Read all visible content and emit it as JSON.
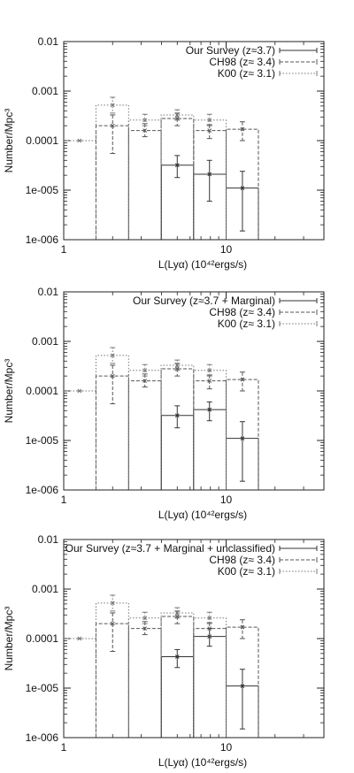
{
  "chart_data": [
    {
      "type": "histogram",
      "ylabel": "Number/Mpc³",
      "xlabel": "L(Lyα) (10⁴²ergs/s)",
      "xlim": [
        1,
        40
      ],
      "ylim": [
        1e-06,
        0.01
      ],
      "xscale": "log",
      "yscale": "log",
      "x_ticks": [
        "1",
        "10"
      ],
      "y_ticks": [
        "0.01",
        "0.001",
        "0.0001",
        "1e-005",
        "1e-006"
      ],
      "legend_position": "top-right",
      "series": [
        {
          "name": "Our Survey (z≈3.7)",
          "style": "solid",
          "bins": [
            {
              "x0": 4.0,
              "x1": 6.3,
              "value": 3.2e-05,
              "center": 5.0,
              "err": [
                1.8e-05,
                5e-05
              ]
            },
            {
              "x0": 6.3,
              "x1": 10.0,
              "value": 2.1e-05,
              "center": 7.9,
              "err": [
                6e-06,
                4e-05
              ]
            },
            {
              "x0": 10.0,
              "x1": 15.8,
              "value": 1.1e-05,
              "center": 12.6,
              "err": [
                1.5e-06,
                2.4e-05
              ]
            }
          ]
        },
        {
          "name": "CH98 (z≈ 3.4)",
          "style": "dashed",
          "bins": [
            {
              "x0": 1.58,
              "x1": 2.51,
              "value": 0.0002,
              "center": 2.0,
              "err": [
                5.5e-05,
                0.00033
              ]
            },
            {
              "x0": 2.51,
              "x1": 3.98,
              "value": 0.00016,
              "center": 3.16,
              "err": [
                0.00012,
                0.00022
              ]
            },
            {
              "x0": 3.98,
              "x1": 6.31,
              "value": 0.00028,
              "center": 5.0,
              "err": [
                0.0002,
                0.00036
              ]
            },
            {
              "x0": 6.31,
              "x1": 10.0,
              "value": 0.00016,
              "center": 7.9,
              "err": [
                0.00011,
                0.00021
              ]
            },
            {
              "x0": 10.0,
              "x1": 15.8,
              "value": 0.00017,
              "center": 12.6,
              "err": [
                0.0001,
                0.00024
              ]
            }
          ]
        },
        {
          "name": "K00 (z≈ 3.1)",
          "style": "dotted",
          "bins": [
            {
              "x0": 1.0,
              "x1": 1.58,
              "value": 0.0001,
              "center": 1.25,
              "err": [
                0.0001,
                0.0001
              ]
            },
            {
              "x0": 1.58,
              "x1": 2.51,
              "value": 0.00052,
              "center": 2.0,
              "err": [
                0.00036,
                0.00075
              ]
            },
            {
              "x0": 2.51,
              "x1": 3.98,
              "value": 0.00026,
              "center": 3.16,
              "err": [
                0.0002,
                0.00034
              ]
            },
            {
              "x0": 3.98,
              "x1": 6.31,
              "value": 0.00033,
              "center": 5.0,
              "err": [
                0.00026,
                0.00042
              ]
            },
            {
              "x0": 6.31,
              "x1": 10.0,
              "value": 0.00026,
              "center": 7.9,
              "err": [
                0.0002,
                0.00034
              ]
            }
          ]
        }
      ]
    },
    {
      "type": "histogram",
      "ylabel": "Number/Mpc³",
      "xlabel": "L(Lyα) (10⁴²ergs/s)",
      "xlim": [
        1,
        40
      ],
      "ylim": [
        1e-06,
        0.01
      ],
      "xscale": "log",
      "yscale": "log",
      "x_ticks": [
        "1",
        "10"
      ],
      "y_ticks": [
        "0.01",
        "0.001",
        "0.0001",
        "1e-005",
        "1e-006"
      ],
      "legend_position": "top-right",
      "series": [
        {
          "name": "Our Survey (z≈3.7 + Marginal)",
          "style": "solid",
          "bins": [
            {
              "x0": 4.0,
              "x1": 6.3,
              "value": 3.2e-05,
              "center": 5.0,
              "err": [
                1.8e-05,
                5e-05
              ]
            },
            {
              "x0": 6.3,
              "x1": 10.0,
              "value": 4.2e-05,
              "center": 7.9,
              "err": [
                2.5e-05,
                6e-05
              ]
            },
            {
              "x0": 10.0,
              "x1": 15.8,
              "value": 1.1e-05,
              "center": 12.6,
              "err": [
                1.5e-06,
                2.4e-05
              ]
            }
          ]
        },
        {
          "name": "CH98 (z≈ 3.4)",
          "style": "dashed",
          "bins": [
            {
              "x0": 1.58,
              "x1": 2.51,
              "value": 0.0002,
              "center": 2.0,
              "err": [
                5.5e-05,
                0.00033
              ]
            },
            {
              "x0": 2.51,
              "x1": 3.98,
              "value": 0.00016,
              "center": 3.16,
              "err": [
                0.00012,
                0.00022
              ]
            },
            {
              "x0": 3.98,
              "x1": 6.31,
              "value": 0.00028,
              "center": 5.0,
              "err": [
                0.0002,
                0.00036
              ]
            },
            {
              "x0": 6.31,
              "x1": 10.0,
              "value": 0.00016,
              "center": 7.9,
              "err": [
                0.00011,
                0.00021
              ]
            },
            {
              "x0": 10.0,
              "x1": 15.8,
              "value": 0.00017,
              "center": 12.6,
              "err": [
                0.0001,
                0.00024
              ]
            }
          ]
        },
        {
          "name": "K00 (z≈ 3.1)",
          "style": "dotted",
          "bins": [
            {
              "x0": 1.0,
              "x1": 1.58,
              "value": 0.0001,
              "center": 1.25,
              "err": [
                0.0001,
                0.0001
              ]
            },
            {
              "x0": 1.58,
              "x1": 2.51,
              "value": 0.00052,
              "center": 2.0,
              "err": [
                0.00036,
                0.00075
              ]
            },
            {
              "x0": 2.51,
              "x1": 3.98,
              "value": 0.00026,
              "center": 3.16,
              "err": [
                0.0002,
                0.00034
              ]
            },
            {
              "x0": 3.98,
              "x1": 6.31,
              "value": 0.00033,
              "center": 5.0,
              "err": [
                0.00026,
                0.00042
              ]
            },
            {
              "x0": 6.31,
              "x1": 10.0,
              "value": 0.00026,
              "center": 7.9,
              "err": [
                0.0002,
                0.00034
              ]
            }
          ]
        }
      ]
    },
    {
      "type": "histogram",
      "ylabel": "Number/Mpc³",
      "xlabel": "L(Lyα) (10⁴²ergs/s)",
      "xlim": [
        1,
        40
      ],
      "ylim": [
        1e-06,
        0.01
      ],
      "xscale": "log",
      "yscale": "log",
      "x_ticks": [
        "1",
        "10"
      ],
      "y_ticks": [
        "0.01",
        "0.001",
        "0.0001",
        "1e-005",
        "1e-006"
      ],
      "legend_position": "top-right",
      "series": [
        {
          "name": "Our Survey (z≈3.7 + Marginal + unclassified)",
          "style": "solid",
          "bins": [
            {
              "x0": 4.0,
              "x1": 6.3,
              "value": 4.3e-05,
              "center": 5.0,
              "err": [
                2.6e-05,
                6e-05
              ]
            },
            {
              "x0": 6.3,
              "x1": 10.0,
              "value": 0.00011,
              "center": 7.9,
              "err": [
                7e-05,
                0.00016
              ]
            },
            {
              "x0": 10.0,
              "x1": 15.8,
              "value": 1.1e-05,
              "center": 12.6,
              "err": [
                1.5e-06,
                2.4e-05
              ]
            }
          ]
        },
        {
          "name": "CH98 (z≈ 3.4)",
          "style": "dashed",
          "bins": [
            {
              "x0": 1.58,
              "x1": 2.51,
              "value": 0.0002,
              "center": 2.0,
              "err": [
                5.5e-05,
                0.00033
              ]
            },
            {
              "x0": 2.51,
              "x1": 3.98,
              "value": 0.00016,
              "center": 3.16,
              "err": [
                0.00012,
                0.00022
              ]
            },
            {
              "x0": 3.98,
              "x1": 6.31,
              "value": 0.00028,
              "center": 5.0,
              "err": [
                0.0002,
                0.00036
              ]
            },
            {
              "x0": 6.31,
              "x1": 10.0,
              "value": 0.00016,
              "center": 7.9,
              "err": [
                0.00011,
                0.00021
              ]
            },
            {
              "x0": 10.0,
              "x1": 15.8,
              "value": 0.00017,
              "center": 12.6,
              "err": [
                0.0001,
                0.00024
              ]
            }
          ]
        },
        {
          "name": "K00 (z≈ 3.1)",
          "style": "dotted",
          "bins": [
            {
              "x0": 1.0,
              "x1": 1.58,
              "value": 0.0001,
              "center": 1.25,
              "err": [
                0.0001,
                0.0001
              ]
            },
            {
              "x0": 1.58,
              "x1": 2.51,
              "value": 0.00052,
              "center": 2.0,
              "err": [
                0.00036,
                0.00075
              ]
            },
            {
              "x0": 2.51,
              "x1": 3.98,
              "value": 0.00026,
              "center": 3.16,
              "err": [
                0.0002,
                0.00034
              ]
            },
            {
              "x0": 3.98,
              "x1": 6.31,
              "value": 0.00033,
              "center": 5.0,
              "err": [
                0.00026,
                0.00042
              ]
            },
            {
              "x0": 6.31,
              "x1": 10.0,
              "value": 0.00026,
              "center": 7.9,
              "err": [
                0.0002,
                0.00034
              ]
            }
          ]
        }
      ]
    }
  ]
}
